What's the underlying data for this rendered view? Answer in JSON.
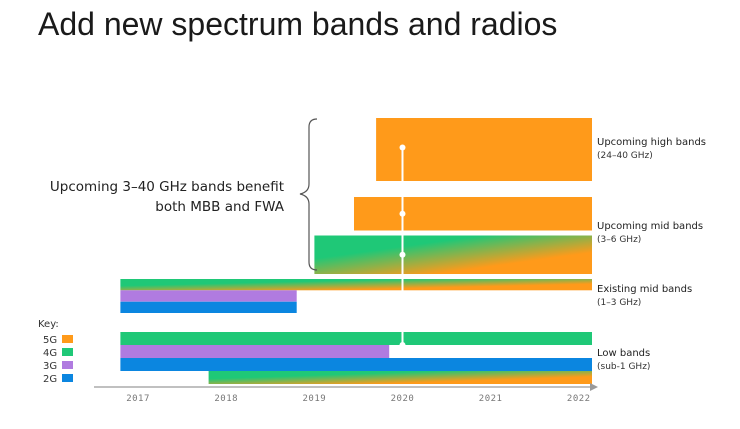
{
  "title": "Add new spectrum bands and radios",
  "annotation": {
    "line1": "Upcoming 3–40 GHz bands benefit",
    "line2": "both MBB and FWA"
  },
  "chart_data": {
    "type": "bar",
    "orientation": "horizontal-timeline",
    "x_ticks": [
      "2017",
      "2018",
      "2019",
      "2020",
      "2021",
      "2022"
    ],
    "xlim": [
      2016.5,
      2022.15
    ],
    "marker_year": 2020,
    "colors": {
      "5G": "#ff9a1a",
      "4G": "#1fc877",
      "3G": "#b07be0",
      "2G": "#0b86e0"
    },
    "key": {
      "title": "Key:",
      "entries": [
        {
          "label": "5G",
          "tech": "5G"
        },
        {
          "label": "4G",
          "tech": "4G"
        },
        {
          "label": "3G",
          "tech": "3G"
        },
        {
          "label": "2G",
          "tech": "2G"
        }
      ]
    },
    "bands": [
      {
        "name": "Upcoming high bands",
        "sub": "(24–40 GHz)",
        "rows": [
          {
            "tech": "5G",
            "start": 2019.7,
            "end": 2022.15,
            "weight": 3.2
          }
        ]
      },
      {
        "name": "Upcoming mid bands",
        "sub": "(3–6 GHz)",
        "rows": [
          {
            "tech": "5G",
            "start": 2019.45,
            "end": 2022.15,
            "weight": 1.9
          },
          {
            "tech": "4G-to-5G",
            "start": 2019.0,
            "end": 2022.15,
            "weight": 1.9
          }
        ]
      },
      {
        "name": "Existing mid bands",
        "sub": "(1–3 GHz)",
        "rows": [
          {
            "tech": "4G-to-5G",
            "start": 2016.8,
            "end": 2022.15,
            "weight": 1
          },
          {
            "tech": "3G",
            "start": 2016.8,
            "end": 2018.8,
            "weight": 1
          },
          {
            "tech": "2G",
            "start": 2016.8,
            "end": 2018.8,
            "weight": 1
          }
        ]
      },
      {
        "name": "Low bands",
        "sub": "(sub-1 GHz)",
        "rows": [
          {
            "tech": "4G",
            "start": 2016.8,
            "end": 2022.15,
            "weight": 1
          },
          {
            "tech": "3G",
            "start": 2016.8,
            "end": 2019.85,
            "weight": 1
          },
          {
            "tech": "2G",
            "start": 2016.8,
            "end": 2022.15,
            "weight": 1
          },
          {
            "tech": "4G-to-5G",
            "start": 2017.8,
            "end": 2022.15,
            "weight": 1
          }
        ]
      }
    ]
  }
}
